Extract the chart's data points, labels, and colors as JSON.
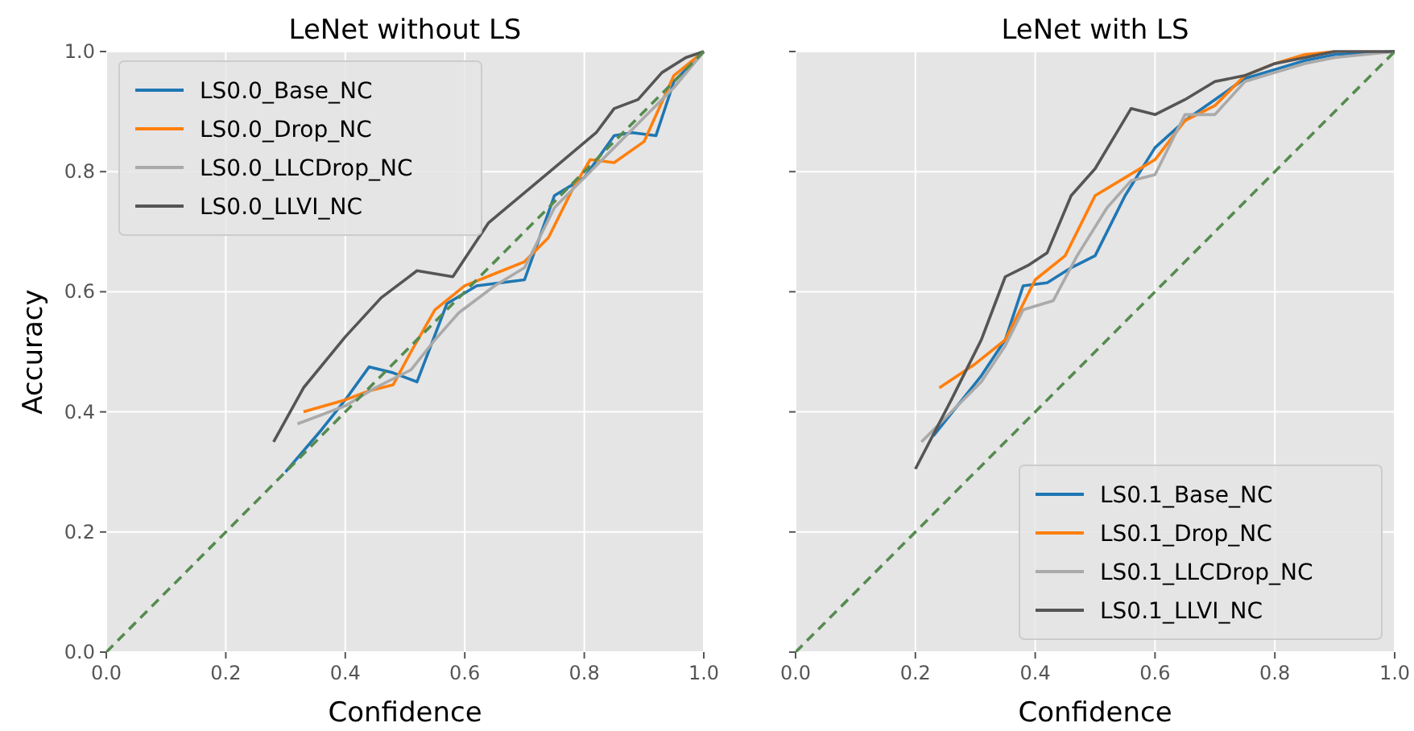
{
  "chart_data": [
    {
      "type": "line",
      "title": "LeNet without LS",
      "xlabel": "Confidence",
      "ylabel": "Accuracy",
      "xlim": [
        0,
        1
      ],
      "ylim": [
        0,
        1
      ],
      "xticks": [
        {
          "value": 0,
          "label": "0.0"
        },
        {
          "value": 0.2,
          "label": "0.2"
        },
        {
          "value": 0.4,
          "label": "0.4"
        },
        {
          "value": 0.6,
          "label": "0.6"
        },
        {
          "value": 0.8,
          "label": "0.8"
        },
        {
          "value": 1,
          "label": "1.0"
        }
      ],
      "yticks": [
        {
          "value": 0,
          "label": "0.0"
        },
        {
          "value": 0.2,
          "label": "0.2"
        },
        {
          "value": 0.4,
          "label": "0.4"
        },
        {
          "value": 0.6,
          "label": "0.6"
        },
        {
          "value": 0.8,
          "label": "0.8"
        },
        {
          "value": 1,
          "label": "1.0"
        }
      ],
      "grid": true,
      "legend": "top left",
      "series": [
        {
          "name": "LS0.0_Base_NC",
          "color": "#1f77b4",
          "x": [
            0.3,
            0.36,
            0.4,
            0.44,
            0.48,
            0.52,
            0.57,
            0.62,
            0.7,
            0.75,
            0.8,
            0.85,
            0.88,
            0.92,
            0.95,
            1.0
          ],
          "values": [
            0.3,
            0.37,
            0.42,
            0.475,
            0.465,
            0.45,
            0.58,
            0.61,
            0.62,
            0.76,
            0.79,
            0.86,
            0.865,
            0.86,
            0.95,
            1.0
          ]
        },
        {
          "name": "LS0.0_Drop_NC",
          "color": "#ff7f0e",
          "x": [
            0.33,
            0.4,
            0.44,
            0.48,
            0.51,
            0.55,
            0.6,
            0.65,
            0.7,
            0.74,
            0.78,
            0.81,
            0.85,
            0.9,
            0.95,
            1.0
          ],
          "values": [
            0.4,
            0.42,
            0.435,
            0.445,
            0.5,
            0.57,
            0.61,
            0.63,
            0.65,
            0.69,
            0.77,
            0.82,
            0.815,
            0.85,
            0.96,
            1.0
          ]
        },
        {
          "name": "LS0.0_LLCDrop_NC",
          "color": "#aaaaaa",
          "x": [
            0.32,
            0.4,
            0.45,
            0.51,
            0.55,
            0.59,
            0.65,
            0.7,
            0.75,
            0.8,
            0.85,
            0.9,
            0.95,
            1.0
          ],
          "values": [
            0.38,
            0.41,
            0.44,
            0.47,
            0.52,
            0.565,
            0.61,
            0.64,
            0.74,
            0.79,
            0.84,
            0.89,
            0.94,
            1.0
          ]
        },
        {
          "name": "LS0.0_LLVI_NC",
          "color": "#555555",
          "x": [
            0.28,
            0.33,
            0.4,
            0.46,
            0.52,
            0.58,
            0.64,
            0.7,
            0.76,
            0.82,
            0.85,
            0.89,
            0.93,
            0.97,
            1.0
          ],
          "values": [
            0.35,
            0.44,
            0.525,
            0.59,
            0.635,
            0.625,
            0.715,
            0.765,
            0.815,
            0.865,
            0.905,
            0.92,
            0.965,
            0.99,
            1.0
          ]
        },
        {
          "color": "#558b4f",
          "line_style": "dashed",
          "x": [
            0,
            1
          ],
          "values": [
            0,
            1
          ]
        }
      ]
    },
    {
      "type": "line",
      "title": "LeNet with LS",
      "xlabel": "Confidence",
      "xlim": [
        0,
        1
      ],
      "ylim": [
        0,
        1
      ],
      "xticks": [
        {
          "value": 0,
          "label": "0.0"
        },
        {
          "value": 0.2,
          "label": "0.2"
        },
        {
          "value": 0.4,
          "label": "0.4"
        },
        {
          "value": 0.6,
          "label": "0.6"
        },
        {
          "value": 0.8,
          "label": "0.8"
        },
        {
          "value": 1,
          "label": "1.0"
        }
      ],
      "yticks": [
        0,
        0.2,
        0.4,
        0.6,
        0.8,
        1
      ],
      "tick_labels": "x",
      "grid": true,
      "legend": "bottom right",
      "series": [
        {
          "name": "LS0.1_Base_NC",
          "color": "#1f77b4",
          "x": [
            0.23,
            0.27,
            0.31,
            0.35,
            0.38,
            0.42,
            0.46,
            0.5,
            0.55,
            0.6,
            0.65,
            0.7,
            0.75,
            0.8,
            0.85,
            0.9,
            1.0
          ],
          "values": [
            0.36,
            0.41,
            0.46,
            0.52,
            0.61,
            0.615,
            0.64,
            0.66,
            0.76,
            0.84,
            0.885,
            0.92,
            0.955,
            0.97,
            0.985,
            0.995,
            1.0
          ]
        },
        {
          "name": "LS0.1_Drop_NC",
          "color": "#ff7f0e",
          "x": [
            0.24,
            0.3,
            0.35,
            0.4,
            0.45,
            0.5,
            0.55,
            0.6,
            0.65,
            0.7,
            0.75,
            0.8,
            0.85,
            0.9
          ],
          "values": [
            0.44,
            0.48,
            0.52,
            0.62,
            0.66,
            0.76,
            0.79,
            0.82,
            0.885,
            0.91,
            0.96,
            0.98,
            0.995,
            1.0
          ]
        },
        {
          "name": "LS0.1_LLCDrop_NC",
          "color": "#aaaaaa",
          "x": [
            0.21,
            0.27,
            0.31,
            0.35,
            0.38,
            0.43,
            0.47,
            0.52,
            0.56,
            0.6,
            0.65,
            0.7,
            0.75,
            0.8,
            0.85,
            0.9,
            1.0
          ],
          "values": [
            0.35,
            0.41,
            0.45,
            0.51,
            0.57,
            0.585,
            0.66,
            0.74,
            0.785,
            0.795,
            0.895,
            0.895,
            0.95,
            0.965,
            0.98,
            0.99,
            1.0
          ]
        },
        {
          "name": "LS0.1_LLVI_NC",
          "color": "#555555",
          "x": [
            0.2,
            0.26,
            0.31,
            0.35,
            0.39,
            0.42,
            0.46,
            0.5,
            0.56,
            0.6,
            0.65,
            0.7,
            0.75,
            0.8,
            0.85,
            0.9,
            1.0
          ],
          "values": [
            0.305,
            0.42,
            0.52,
            0.625,
            0.645,
            0.665,
            0.76,
            0.805,
            0.905,
            0.895,
            0.92,
            0.95,
            0.96,
            0.98,
            0.99,
            1.0,
            1.0
          ]
        },
        {
          "color": "#558b4f",
          "line_style": "dashed",
          "x": [
            0,
            1
          ],
          "values": [
            0,
            1
          ]
        }
      ]
    }
  ]
}
